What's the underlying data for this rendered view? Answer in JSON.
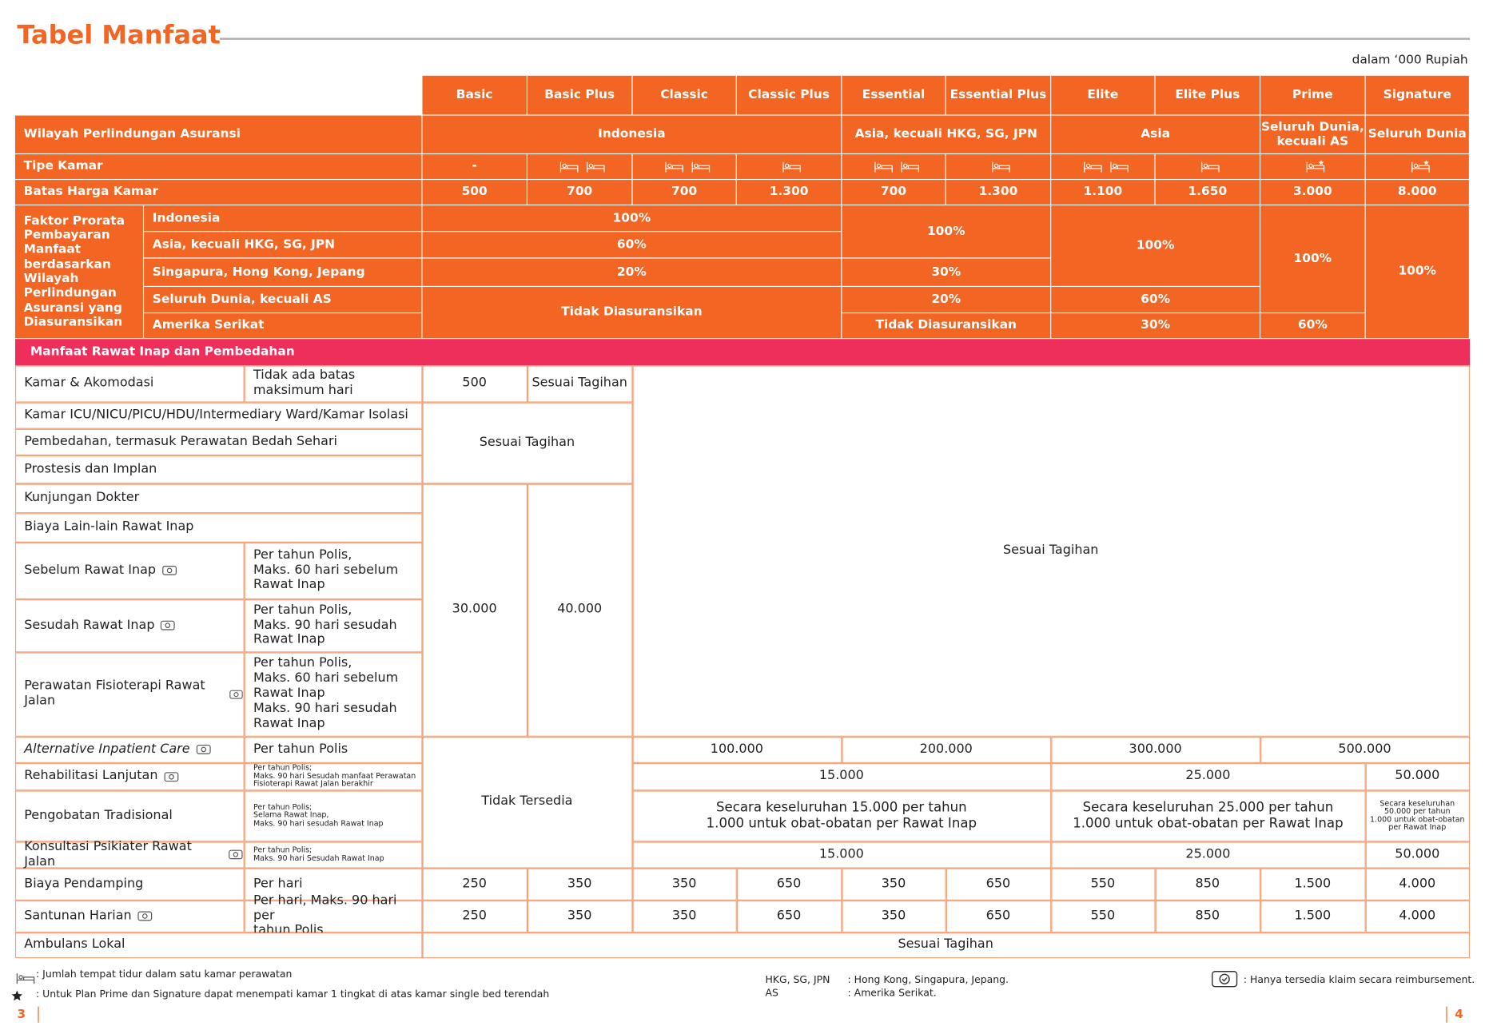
{
  "title": "Tabel Manfaat",
  "currency_note": "dalam ‘000 Rupiah",
  "plans": [
    "Basic",
    "Basic Plus",
    "Classic",
    "Classic Plus",
    "Essential",
    "Essential Plus",
    "Elite",
    "Elite Plus",
    "Prime",
    "Signature"
  ],
  "coverage_area": {
    "label": "Wilayah Perlindungan Asuransi",
    "values": [
      "Indonesia",
      "Asia, kecuali  HKG, SG, JPN",
      "Asia",
      "Seluruh Dunia, kecuali AS",
      "Seluruh Dunia"
    ]
  },
  "room_type": {
    "label": "Tipe Kamar",
    "values": [
      "-"
    ]
  },
  "room_limit": {
    "label": "Batas Harga Kamar",
    "values": [
      "500",
      "700",
      "700",
      "1.300",
      "700",
      "1.300",
      "1.100",
      "1.650",
      "3.000",
      "8.000"
    ]
  },
  "prorata": {
    "label": "Faktor Prorata Pembayaran Manfaat berdasarkan Wilayah Perlindungan Asuransi yang Diasuransikan",
    "regions": [
      "Indonesia",
      "Asia, kecuali HKG, SG, JPN",
      "Singapura, Hong Kong, Jepang",
      "Seluruh Dunia, kecuali AS",
      "Amerika Serikat"
    ],
    "values": [
      "100%",
      "60%",
      "20%",
      "Tidak Diasuransikan",
      "100%",
      "30%",
      "20%",
      "Tidak Diasuransikan",
      "100%",
      "60%",
      "30%",
      "100%",
      "60%",
      "100%"
    ]
  },
  "section": "Manfaat Rawat Inap dan Pembedahan",
  "benefits": [
    {
      "name": "Kamar  & Akomodasi",
      "note": "Tidak ada batas\nmaksimum hari"
    },
    {
      "name": "Kamar ICU/NICU/PICU/HDU/Intermediary Ward/Kamar Isolasi"
    },
    {
      "name": "Pembedahan, termasuk Perawatan Bedah Sehari"
    },
    {
      "name": "Prostesis dan Implan"
    },
    {
      "name": "Kunjungan Dokter"
    },
    {
      "name": "Biaya Lain-lain Rawat Inap"
    },
    {
      "name": "Sebelum Rawat Inap",
      "note": "Per tahun Polis,\nMaks. 60 hari sebelum\nRawat Inap",
      "reimbursement": true
    },
    {
      "name": "Sesudah Rawat Inap",
      "note": "Per tahun Polis,\nMaks. 90 hari sesudah\nRawat Inap",
      "reimbursement": true
    },
    {
      "name": "Perawatan Fisioterapi Rawat Jalan",
      "note": "Per tahun Polis,\nMaks. 60 hari sebelum\nRawat Inap\nMaks. 90 hari sesudah\nRawat Inap",
      "reimbursement": true
    },
    {
      "name": "Alternative Inpatient Care",
      "note": "Per tahun Polis",
      "reimbursement": true
    },
    {
      "name": "Rehabilitasi Lanjutan",
      "note": "Per tahun Polis;\nMaks. 90 hari Sesudah manfaat Perawatan\nFisioterapi Rawat Jalan berakhir",
      "reimbursement": true
    },
    {
      "name": "Pengobatan Tradisional",
      "note": "Per tahun Polis;\nSelama Rawat Inap,\nMaks. 90 hari sesudah Rawat Inap"
    },
    {
      "name": "Konsultasi Psikiater Rawat Jalan",
      "note": "Per tahun Polis;\nMaks. 90 hari Sesudah Rawat Inap",
      "reimbursement": true
    },
    {
      "name": "Biaya Pendamping",
      "note": "Per hari"
    },
    {
      "name": "Santunan Harian",
      "note": "Per hari, Maks. 90 hari per\ntahun Polis",
      "reimbursement": true
    },
    {
      "name": "Ambulans Lokal"
    }
  ],
  "benefit_values": [
    "500",
    "Sesuai Tagihan",
    "Sesuai Tagihan",
    "30.000",
    "40.000",
    "Sesuai Tagihan",
    "Tidak Tersedia",
    "100.000",
    "200.000",
    "300.000",
    "500.000",
    "15.000",
    "25.000",
    "50.000",
    "Secara keseluruhan 15.000 per tahun\n1.000 untuk obat-obatan per Rawat Inap",
    "Secara keseluruhan 25.000 per tahun\n1.000 untuk obat-obatan per Rawat Inap",
    "Secara keseluruhan\n50.000 per tahun\n1.000 untuk obat-obatan\nper Rawat Inap",
    "15.000",
    "25.000",
    "50.000",
    "250",
    "350",
    "350",
    "650",
    "350",
    "650",
    "550",
    "850",
    "1.500",
    "4.000",
    "250",
    "350",
    "350",
    "650",
    "350",
    "650",
    "550",
    "850",
    "1.500",
    "4.000",
    "Sesuai Tagihan"
  ],
  "footnotes": {
    "bed": ": Jumlah tempat tidur dalam satu kamar perawatan",
    "star": ": Untuk Plan Prime dan Signature dapat menempati kamar 1 tingkat di atas kamar single bed terendah",
    "abbreviations": [
      {
        "abbr": "HKG, SG, JPN",
        "meaning": ":   Hong Kong, Singapura, Jepang."
      },
      {
        "abbr": "AS",
        "meaning": ":   Amerika Serikat."
      }
    ],
    "reimbursement": ": Hanya tersedia klaim secara reimbursement."
  },
  "pages": [
    "3",
    "4"
  ]
}
